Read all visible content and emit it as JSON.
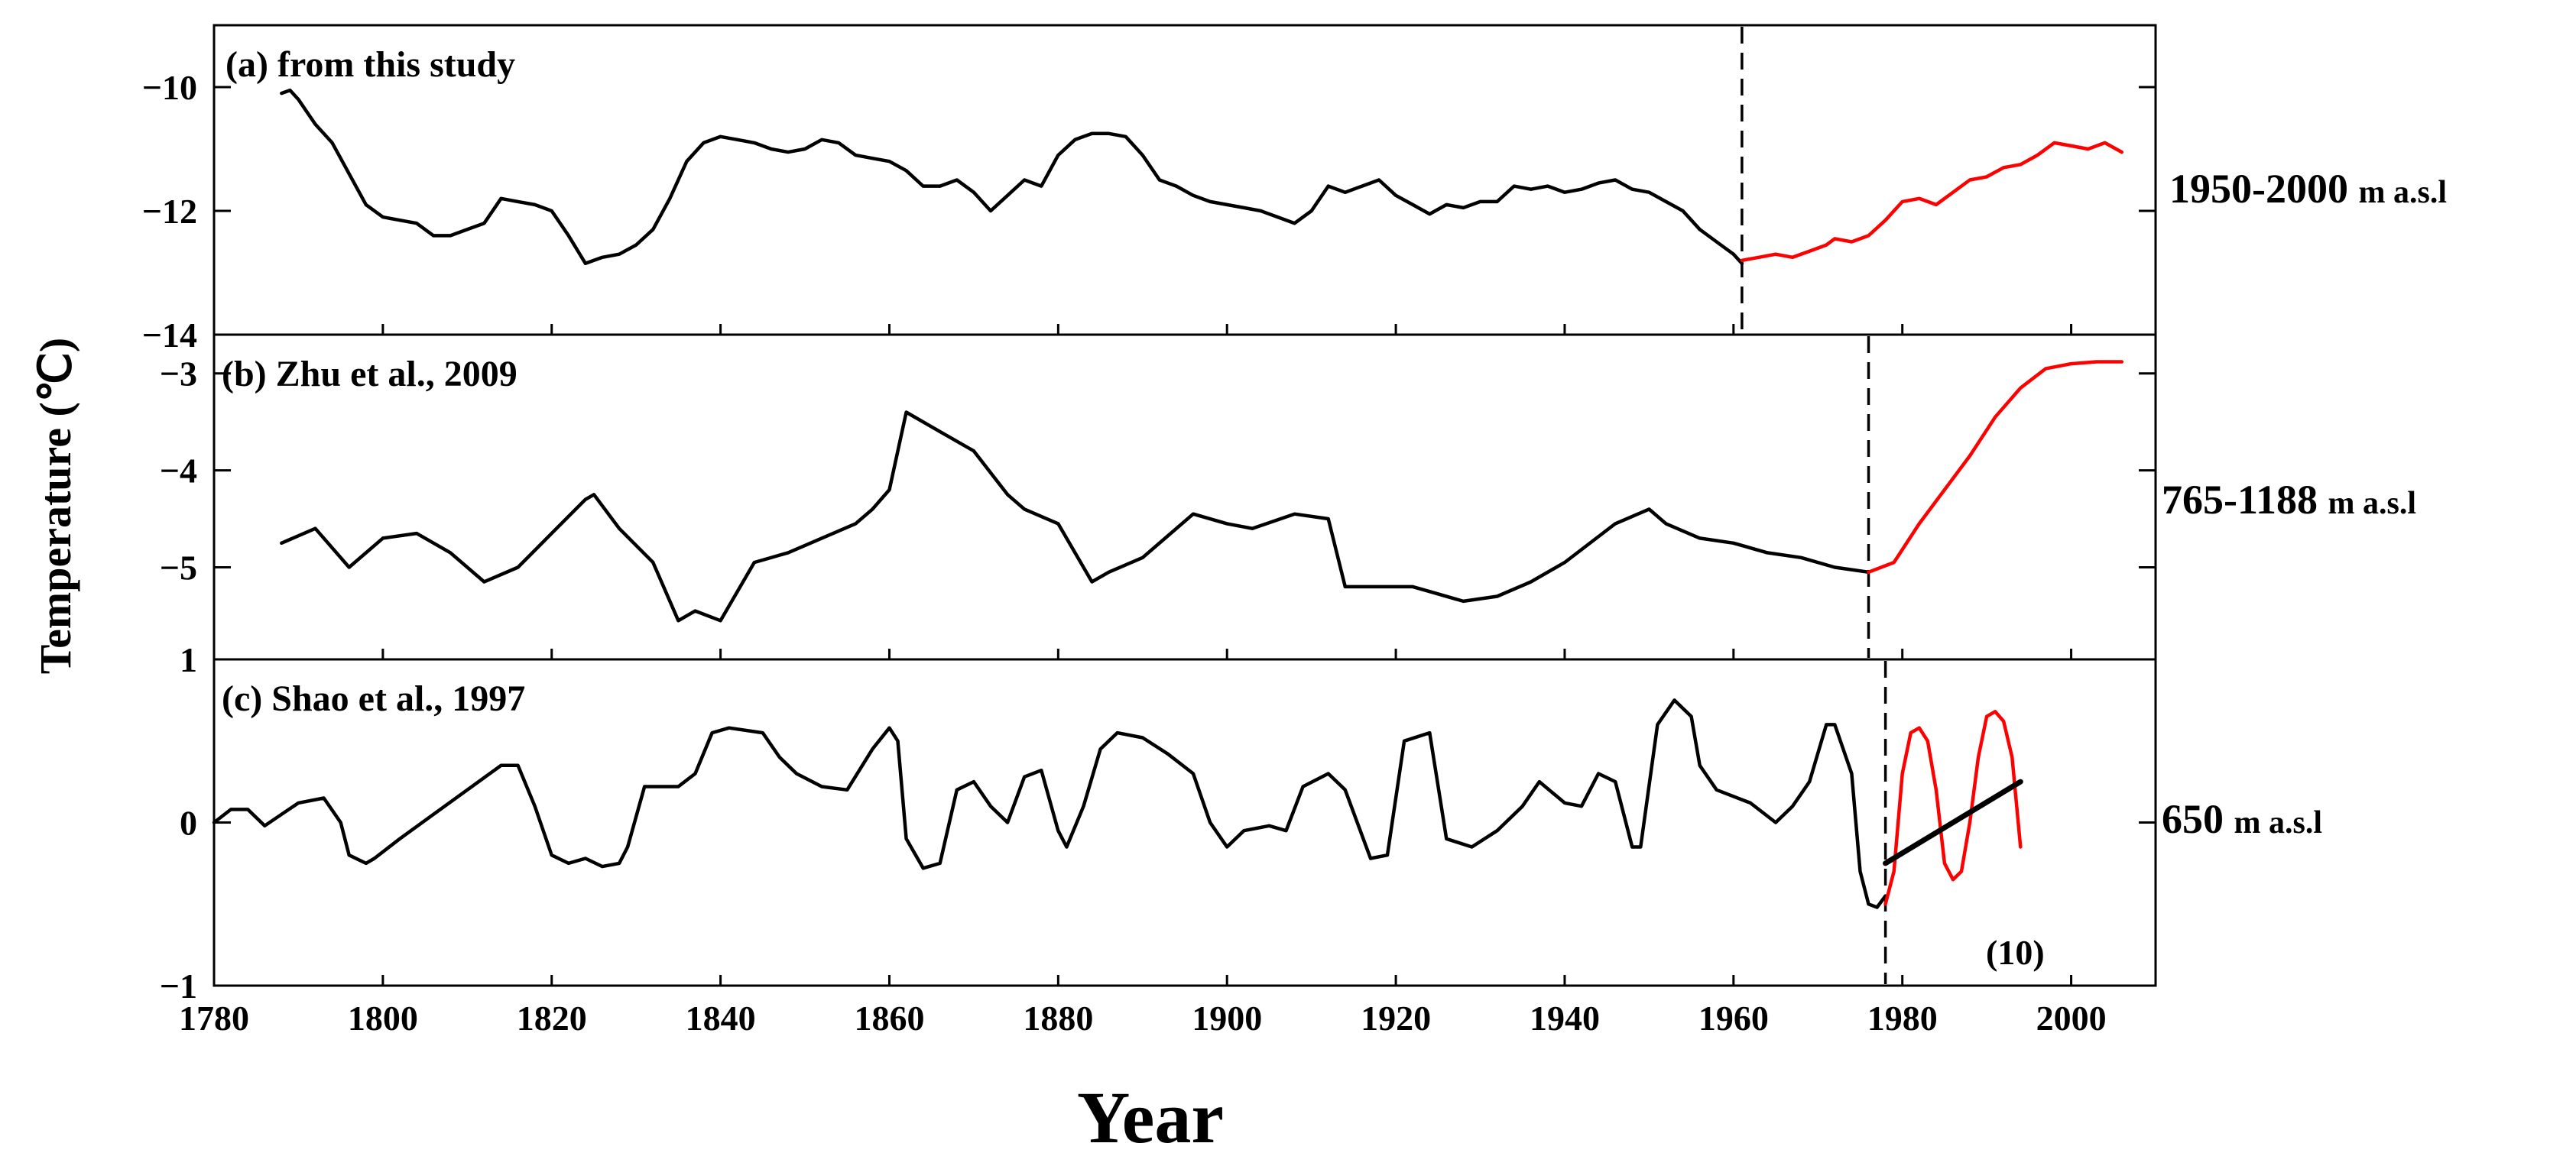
{
  "figure": {
    "y_label": "Temperature (℃)",
    "x_label": "Year"
  },
  "chart_data": [
    {
      "type": "line",
      "panel": "a",
      "title": "(a)  from this study",
      "elevation": "1950-2000",
      "elevation_unit": "m a.s.l",
      "xlim": [
        1780,
        2010
      ],
      "ylim": [
        -14,
        -9
      ],
      "xticks": [
        1780,
        1800,
        1820,
        1840,
        1860,
        1880,
        1900,
        1920,
        1940,
        1960,
        1980,
        2000
      ],
      "yticks": [
        -10,
        -12,
        -14
      ],
      "divider_year": 1961,
      "series": [
        {
          "name": "reconstruction",
          "color": "#000000",
          "x": [
            1788,
            1789,
            1790,
            1792,
            1794,
            1796,
            1798,
            1800,
            1802,
            1804,
            1806,
            1808,
            1810,
            1812,
            1814,
            1816,
            1818,
            1820,
            1822,
            1824,
            1826,
            1828,
            1830,
            1832,
            1834,
            1836,
            1838,
            1840,
            1842,
            1844,
            1846,
            1848,
            1850,
            1852,
            1854,
            1856,
            1858,
            1860,
            1862,
            1864,
            1866,
            1868,
            1870,
            1872,
            1874,
            1876,
            1878,
            1880,
            1882,
            1884,
            1886,
            1888,
            1890,
            1892,
            1894,
            1896,
            1898,
            1900,
            1902,
            1904,
            1906,
            1908,
            1910,
            1912,
            1914,
            1916,
            1918,
            1920,
            1922,
            1924,
            1926,
            1928,
            1930,
            1932,
            1934,
            1936,
            1938,
            1940,
            1942,
            1944,
            1946,
            1948,
            1950,
            1952,
            1954,
            1956,
            1958,
            1960,
            1961
          ],
          "y": [
            -10.1,
            -10.05,
            -10.2,
            -10.6,
            -10.9,
            -11.4,
            -11.9,
            -12.1,
            -12.15,
            -12.2,
            -12.4,
            -12.4,
            -12.3,
            -12.2,
            -11.8,
            -11.85,
            -11.9,
            -12.0,
            -12.4,
            -12.85,
            -12.75,
            -12.7,
            -12.55,
            -12.3,
            -11.8,
            -11.2,
            -10.9,
            -10.8,
            -10.85,
            -10.9,
            -11.0,
            -11.05,
            -11.0,
            -10.85,
            -10.9,
            -11.1,
            -11.15,
            -11.2,
            -11.35,
            -11.6,
            -11.6,
            -11.5,
            -11.7,
            -12.0,
            -11.75,
            -11.5,
            -11.6,
            -11.1,
            -10.85,
            -10.75,
            -10.75,
            -10.8,
            -11.1,
            -11.5,
            -11.6,
            -11.75,
            -11.85,
            -11.9,
            -11.95,
            -12.0,
            -12.1,
            -12.2,
            -12.0,
            -11.6,
            -11.7,
            -11.6,
            -11.5,
            -11.75,
            -11.9,
            -12.05,
            -11.9,
            -11.95,
            -11.85,
            -11.85,
            -11.6,
            -11.65,
            -11.6,
            -11.7,
            -11.65,
            -11.55,
            -11.5,
            -11.65,
            -11.7,
            -11.85,
            -12.0,
            -12.3,
            -12.5,
            -12.7,
            -12.85
          ]
        },
        {
          "name": "recent",
          "color": "#ff0000",
          "x": [
            1961,
            1963,
            1965,
            1967,
            1969,
            1971,
            1972,
            1974,
            1976,
            1978,
            1980,
            1982,
            1984,
            1986,
            1988,
            1990,
            1992,
            1994,
            1996,
            1998,
            2000,
            2002,
            2004,
            2006
          ],
          "y": [
            -12.8,
            -12.75,
            -12.7,
            -12.75,
            -12.65,
            -12.55,
            -12.45,
            -12.5,
            -12.4,
            -12.15,
            -11.85,
            -11.8,
            -11.9,
            -11.7,
            -11.5,
            -11.45,
            -11.3,
            -11.25,
            -11.1,
            -10.9,
            -10.95,
            -11.0,
            -10.9,
            -11.05
          ]
        }
      ]
    },
    {
      "type": "line",
      "panel": "b",
      "title": "(b) Zhu et al., 2009",
      "elevation": "765-1188",
      "elevation_unit": "m a.s.l",
      "xlim": [
        1780,
        2010
      ],
      "ylim": [
        -5.95,
        -2.6
      ],
      "yticks": [
        -3,
        -4,
        -5
      ],
      "divider_year": 1976,
      "series": [
        {
          "name": "reconstruction",
          "color": "#000000",
          "x": [
            1788,
            1792,
            1796,
            1800,
            1804,
            1808,
            1812,
            1816,
            1820,
            1824,
            1825,
            1828,
            1832,
            1835,
            1837,
            1840,
            1844,
            1848,
            1852,
            1856,
            1858,
            1860,
            1862,
            1866,
            1870,
            1874,
            1876,
            1880,
            1884,
            1886,
            1890,
            1896,
            1900,
            1903,
            1908,
            1912,
            1914,
            1918,
            1922,
            1924,
            1928,
            1932,
            1936,
            1940,
            1946,
            1950,
            1952,
            1956,
            1960,
            1964,
            1968,
            1972,
            1976
          ],
          "y": [
            -4.75,
            -4.6,
            -5.0,
            -4.7,
            -4.65,
            -4.85,
            -5.15,
            -5.0,
            -4.65,
            -4.3,
            -4.25,
            -4.6,
            -4.95,
            -5.55,
            -5.45,
            -5.55,
            -4.95,
            -4.85,
            -4.7,
            -4.55,
            -4.4,
            -4.2,
            -3.4,
            -3.6,
            -3.8,
            -4.25,
            -4.4,
            -4.55,
            -5.15,
            -5.05,
            -4.9,
            -4.45,
            -4.55,
            -4.6,
            -4.45,
            -4.5,
            -5.2,
            -5.2,
            -5.2,
            -5.25,
            -5.35,
            -5.3,
            -5.15,
            -4.95,
            -4.55,
            -4.4,
            -4.55,
            -4.7,
            -4.75,
            -4.85,
            -4.9,
            -5.0,
            -5.05
          ]
        },
        {
          "name": "recent",
          "color": "#ff0000",
          "x": [
            1976,
            1979,
            1982,
            1985,
            1988,
            1991,
            1994,
            1997,
            2000,
            2003,
            2006
          ],
          "y": [
            -5.05,
            -4.95,
            -4.55,
            -4.2,
            -3.85,
            -3.45,
            -3.15,
            -2.95,
            -2.9,
            -2.88,
            -2.88
          ]
        }
      ]
    },
    {
      "type": "line",
      "panel": "c",
      "title": "(c) Shao  et al., 1997",
      "elevation": "650",
      "elevation_unit": "m a.s.l",
      "annotation": "(10)",
      "xlim": [
        1780,
        2010
      ],
      "ylim": [
        -1,
        1
      ],
      "yticks": [
        1,
        0,
        -1
      ],
      "divider_year": 1978,
      "series": [
        {
          "name": "reconstruction",
          "color": "#000000",
          "x": [
            1780,
            1782,
            1784,
            1786,
            1788,
            1790,
            1793,
            1795,
            1796,
            1798,
            1799,
            1802,
            1806,
            1810,
            1814,
            1816,
            1818,
            1820,
            1822,
            1824,
            1826,
            1828,
            1829,
            1831,
            1835,
            1837,
            1839,
            1841,
            1845,
            1847,
            1849,
            1852,
            1855,
            1858,
            1860,
            1861,
            1862,
            1864,
            1866,
            1868,
            1870,
            1872,
            1874,
            1876,
            1878,
            1880,
            1881,
            1883,
            1885,
            1887,
            1890,
            1893,
            1896,
            1898,
            1900,
            1902,
            1905,
            1907,
            1909,
            1912,
            1914,
            1917,
            1919,
            1921,
            1924,
            1926,
            1929,
            1932,
            1935,
            1937,
            1940,
            1942,
            1944,
            1946,
            1948,
            1949,
            1951,
            1953,
            1955,
            1956,
            1958,
            1962,
            1965,
            1967,
            1969,
            1971,
            1972,
            1974,
            1975,
            1976,
            1977,
            1978
          ],
          "y": [
            0.0,
            0.08,
            0.08,
            -0.02,
            0.05,
            0.12,
            0.15,
            0.0,
            -0.2,
            -0.25,
            -0.22,
            -0.1,
            0.05,
            0.2,
            0.35,
            0.35,
            0.1,
            -0.2,
            -0.25,
            -0.22,
            -0.27,
            -0.25,
            -0.15,
            0.22,
            0.22,
            0.3,
            0.55,
            0.58,
            0.55,
            0.4,
            0.3,
            0.22,
            0.2,
            0.45,
            0.58,
            0.5,
            -0.1,
            -0.28,
            -0.25,
            0.2,
            0.25,
            0.1,
            0.0,
            0.28,
            0.32,
            -0.05,
            -0.15,
            0.1,
            0.45,
            0.55,
            0.52,
            0.42,
            0.3,
            0.0,
            -0.15,
            -0.05,
            -0.02,
            -0.05,
            0.22,
            0.3,
            0.2,
            -0.22,
            -0.2,
            0.5,
            0.55,
            -0.1,
            -0.15,
            -0.05,
            0.1,
            0.25,
            0.12,
            0.1,
            0.3,
            0.25,
            -0.15,
            -0.15,
            0.6,
            0.75,
            0.65,
            0.35,
            0.2,
            0.12,
            0.0,
            0.1,
            0.25,
            0.6,
            0.6,
            0.3,
            -0.3,
            -0.5,
            -0.52,
            -0.45
          ]
        },
        {
          "name": "recent",
          "color": "#ff0000",
          "x": [
            1978,
            1979,
            1980,
            1981,
            1982,
            1983,
            1984,
            1985,
            1986,
            1987,
            1988,
            1989,
            1990,
            1991,
            1992,
            1993,
            1994
          ],
          "y": [
            -0.5,
            -0.3,
            0.3,
            0.55,
            0.58,
            0.5,
            0.2,
            -0.25,
            -0.35,
            -0.3,
            0.0,
            0.4,
            0.65,
            0.68,
            0.62,
            0.4,
            -0.15
          ]
        },
        {
          "name": "trend",
          "color": "#000000",
          "x": [
            1978,
            1994
          ],
          "y": [
            -0.25,
            0.25
          ]
        }
      ]
    }
  ]
}
